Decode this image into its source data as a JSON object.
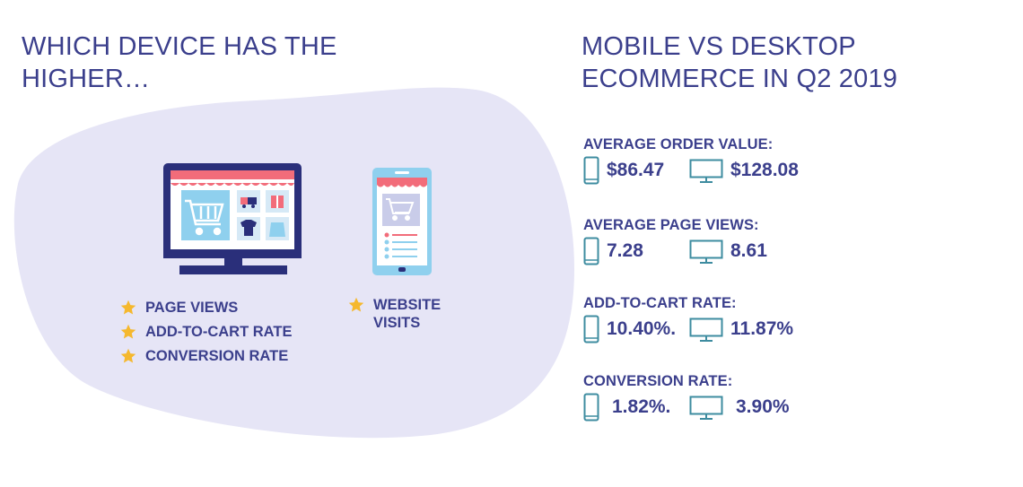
{
  "left": {
    "title": "WHICH DEVICE HAS THE HIGHER…",
    "desktop_wins": [
      "PAGE VIEWS",
      "ADD-TO-CART RATE",
      "CONVERSION RATE"
    ],
    "mobile_wins": [
      "WEBSITE VISITS"
    ]
  },
  "right": {
    "title": "MOBILE VS DESKTOP ECOMMERCE IN Q2 2019",
    "stats": [
      {
        "label": "AVERAGE ORDER VALUE:",
        "mobile": "$86.47",
        "desktop": "$128.08"
      },
      {
        "label": "AVERAGE PAGE VIEWS:",
        "mobile": "7.28",
        "desktop": "8.61"
      },
      {
        "label": "ADD-TO-CART RATE:",
        "mobile": "10.40%.",
        "desktop": "11.87%"
      },
      {
        "label": "CONVERSION RATE:",
        "mobile": "1.82%.",
        "desktop": "3.90%"
      }
    ]
  },
  "icons": [
    "star-icon",
    "mobile-phone-icon",
    "desktop-monitor-icon",
    "shopping-cart-icon",
    "shop-awning-icon"
  ],
  "colors": {
    "navy": "#3b3f8c",
    "lavender_blob": "#e6e5f6",
    "monitor_body": "#2a2f7a",
    "screen_blue": "#8fd0ee",
    "awning_red": "#f26c7a",
    "star_gold": "#f5b82e",
    "icon_teal": "#3e8ca0"
  }
}
